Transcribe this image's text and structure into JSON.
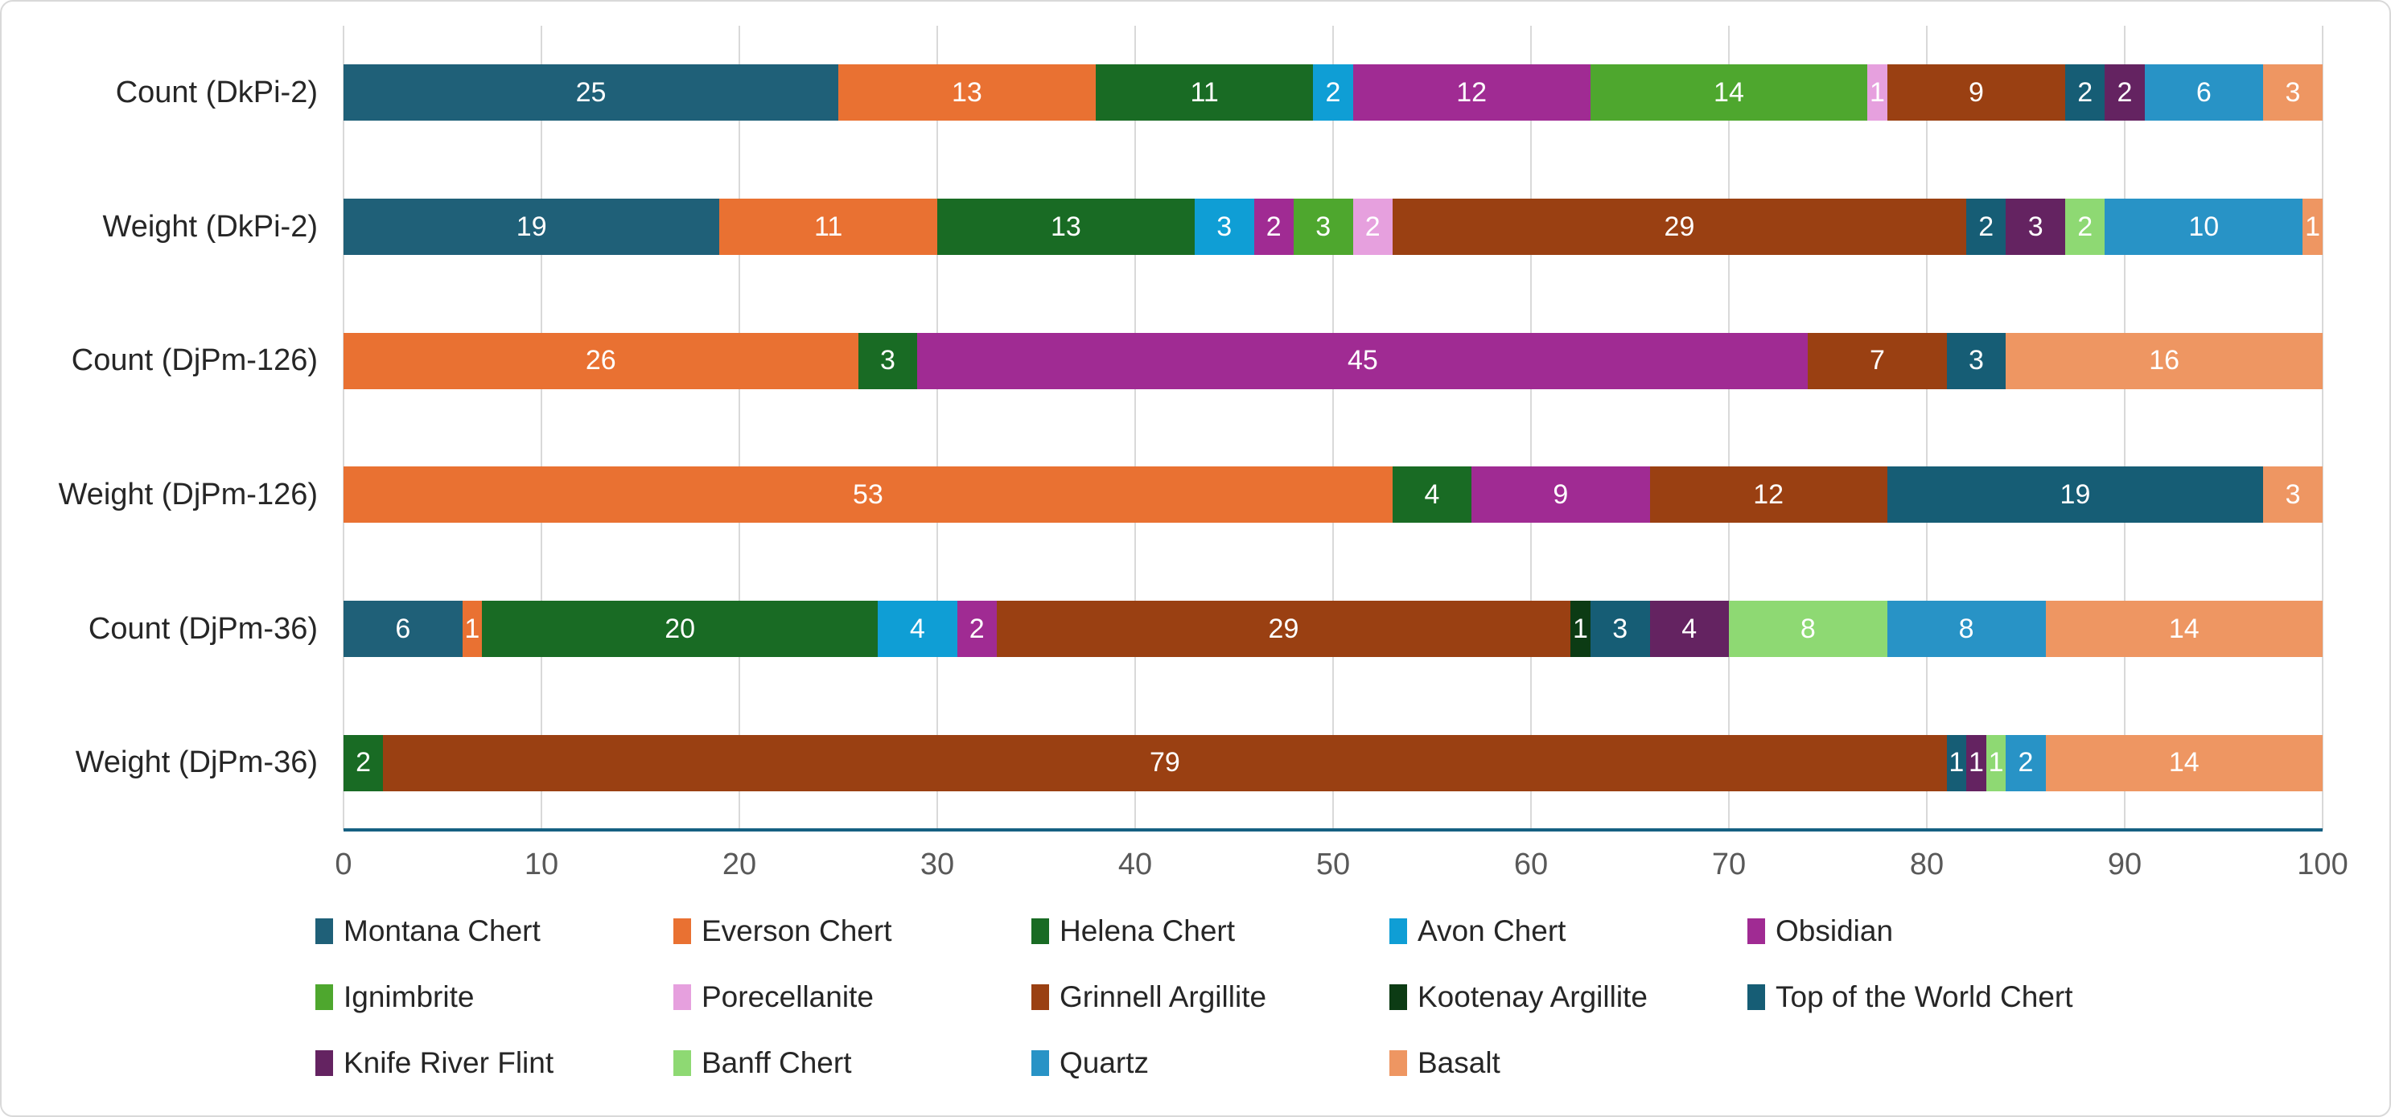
{
  "chart_data": {
    "type": "bar",
    "orientation": "horizontal-stacked",
    "title": "",
    "xlabel": "",
    "ylabel": "",
    "grid": true,
    "x_axis": {
      "min": 0,
      "max": 100,
      "ticks": [
        0,
        10,
        20,
        30,
        40,
        50,
        60,
        70,
        80,
        90,
        100
      ]
    },
    "categories": [
      "Count (DkPi-2)",
      "Weight (DkPi-2)",
      "Count (DjPm-126)",
      "Weight (DjPm-126)",
      "Count (DjPm-36)",
      "Weight (DjPm-36)"
    ],
    "series": [
      {
        "name": "Montana Chert",
        "color": "#1F6078",
        "values": [
          25,
          19,
          0,
          0,
          6,
          0
        ]
      },
      {
        "name": "Everson Chert",
        "color": "#E97132",
        "values": [
          13,
          11,
          26,
          53,
          1,
          0
        ]
      },
      {
        "name": "Helena Chert",
        "color": "#196B24",
        "values": [
          11,
          13,
          3,
          4,
          20,
          2
        ]
      },
      {
        "name": "Avon Chert",
        "color": "#0F9ED5",
        "values": [
          2,
          3,
          0,
          0,
          4,
          0
        ]
      },
      {
        "name": "Obsidian",
        "color": "#A02B93",
        "values": [
          12,
          2,
          45,
          9,
          2,
          0
        ]
      },
      {
        "name": "Ignimbrite",
        "color": "#4EA72E",
        "values": [
          14,
          3,
          0,
          0,
          0,
          0
        ]
      },
      {
        "name": "Porecellanite",
        "color": "#E6A0DE",
        "values": [
          1,
          2,
          0,
          0,
          0,
          0
        ]
      },
      {
        "name": "Grinnell Argillite",
        "color": "#9A4012",
        "values": [
          9,
          29,
          7,
          12,
          29,
          79
        ]
      },
      {
        "name": "Kootenay Argillite",
        "color": "#0C3B14",
        "values": [
          0,
          0,
          0,
          0,
          1,
          0
        ]
      },
      {
        "name": "Top of the World Chert",
        "color": "#165D75",
        "values": [
          2,
          2,
          3,
          19,
          3,
          1
        ]
      },
      {
        "name": "Knife River Flint",
        "color": "#642361",
        "values": [
          2,
          3,
          0,
          0,
          4,
          1
        ]
      },
      {
        "name": "Banff Chert",
        "color": "#8ED973",
        "values": [
          0,
          2,
          0,
          0,
          8,
          1
        ]
      },
      {
        "name": "Quartz",
        "color": "#2893C6",
        "values": [
          6,
          10,
          0,
          0,
          8,
          2
        ]
      },
      {
        "name": "Basalt",
        "color": "#EE9662",
        "values": [
          3,
          1,
          16,
          3,
          14,
          14
        ]
      }
    ],
    "legend": {
      "position": "bottom",
      "rows": [
        [
          0,
          1,
          2,
          3,
          4
        ],
        [
          5,
          6,
          7,
          8,
          9
        ],
        [
          10,
          11,
          12,
          13
        ]
      ]
    }
  },
  "styles": {
    "grid_color": "#D9D9D9",
    "axis_line_color": "#156082",
    "tick_label_color": "#595959",
    "category_label_color": "#262626",
    "legend_label_color": "#262626",
    "data_label_color": "#FFFFFF",
    "border_color": "#D9D9D9",
    "background_color": "#FFFFFF"
  }
}
